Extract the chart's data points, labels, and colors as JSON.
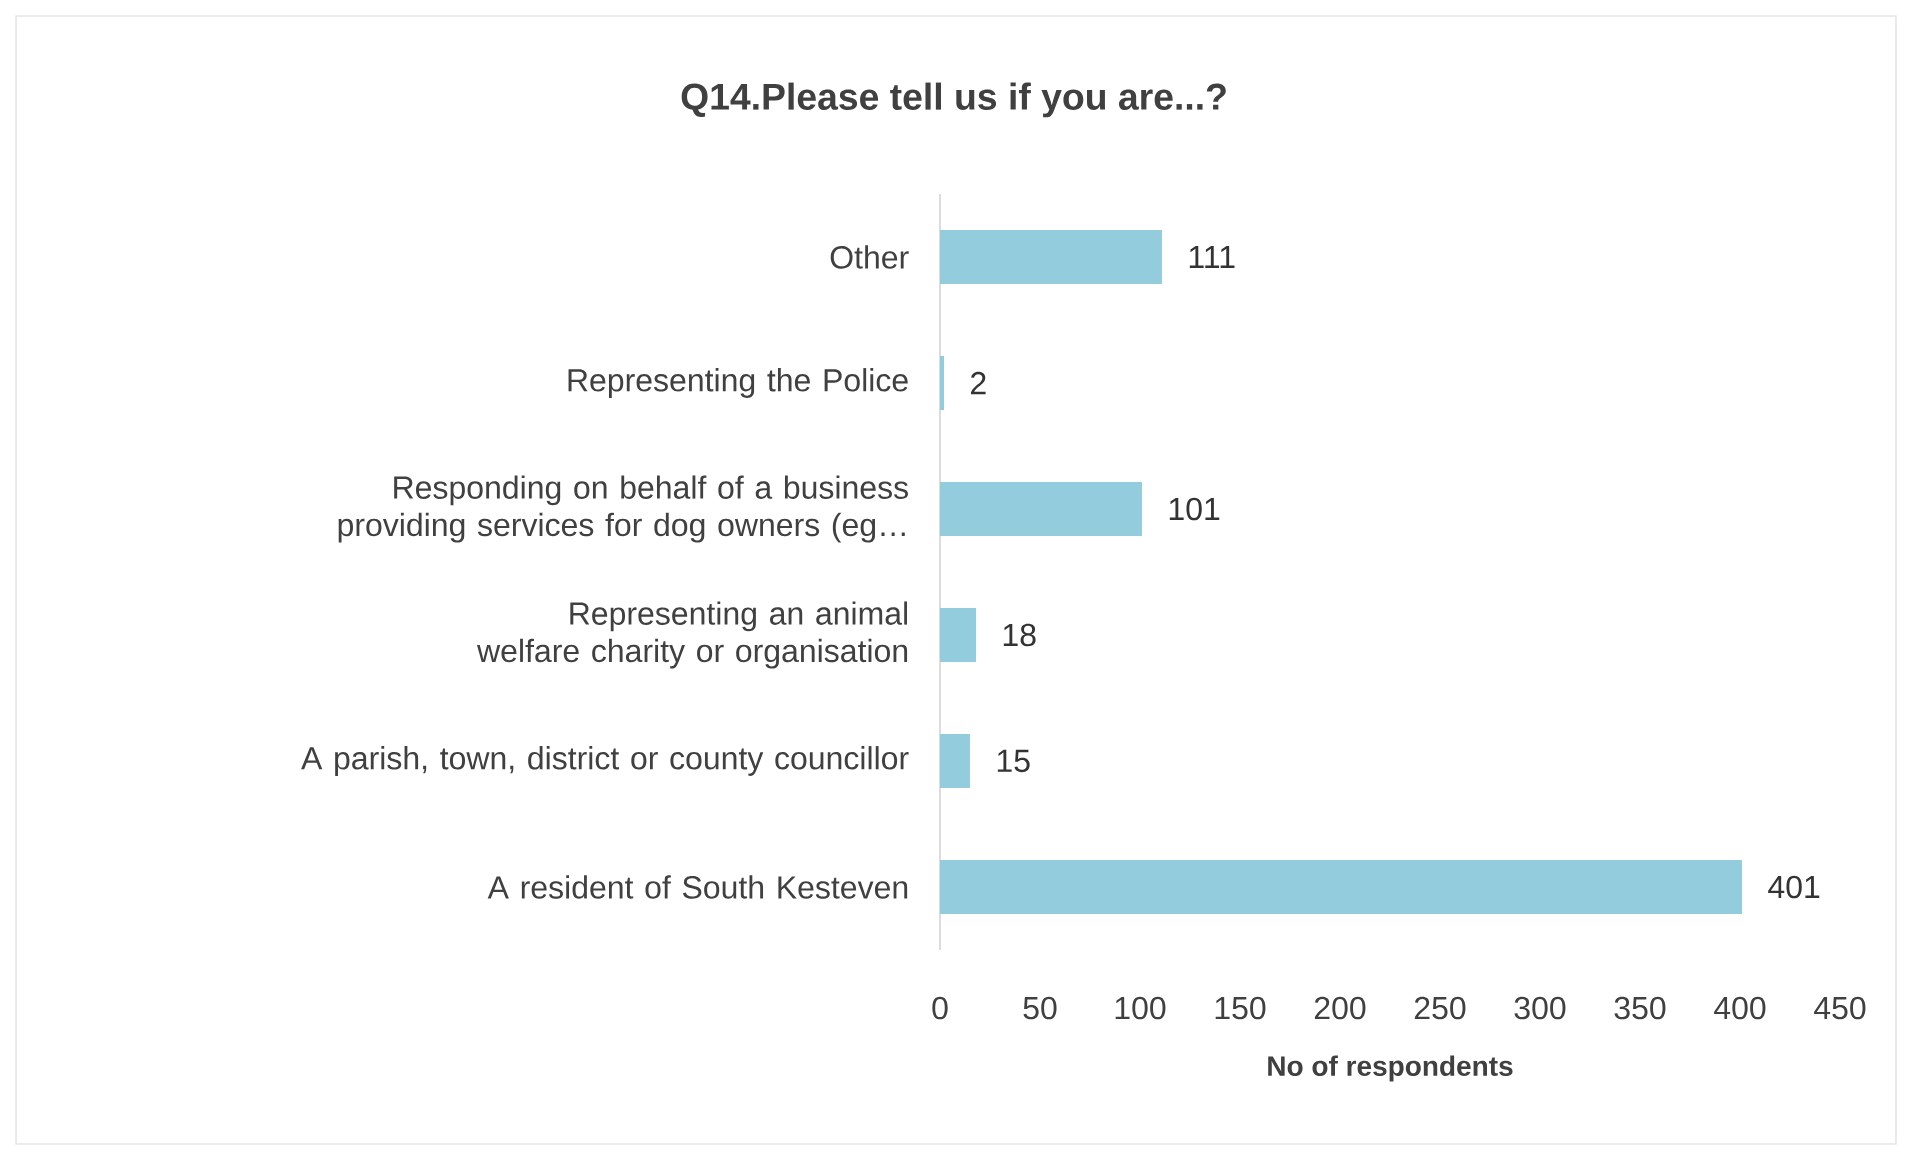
{
  "chart_data": {
    "type": "bar",
    "orientation": "horizontal",
    "title": "Q14.Please tell us if you are...?",
    "xlabel": "No of respondents",
    "categories": [
      "Other",
      "Representing the Police",
      "Responding on behalf of a business providing services for dog owners (eg…",
      "Representing an animal welfare charity or organisation",
      "A parish, town, district or county councillor",
      "A resident of South Kesteven"
    ],
    "values": [
      111,
      2,
      101,
      18,
      15,
      401
    ],
    "color": "#93cddd",
    "xlim": [
      0,
      450
    ],
    "xticks": [
      0,
      50,
      100,
      150,
      200,
      250,
      300,
      350,
      400,
      450
    ],
    "data_labels": true,
    "grid": false
  }
}
